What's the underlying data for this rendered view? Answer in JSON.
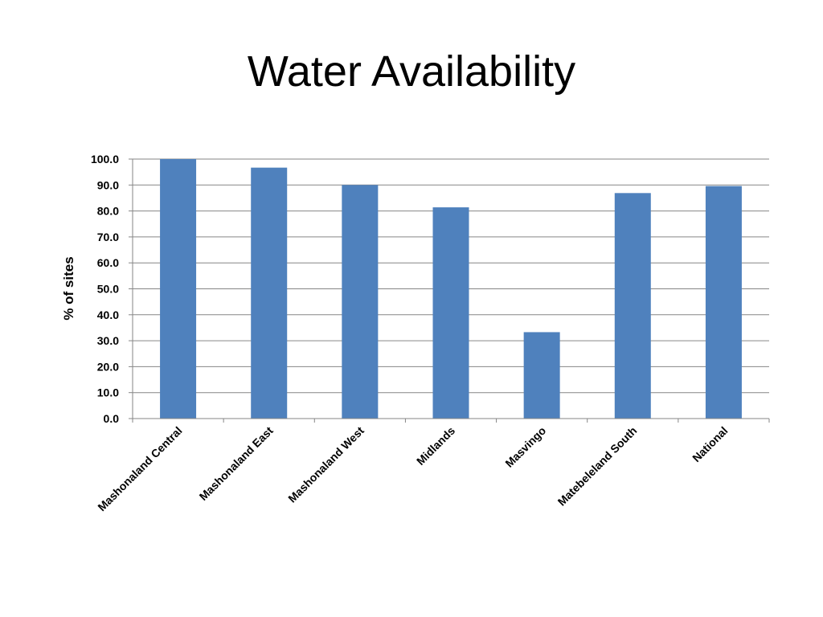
{
  "slide": {
    "title": "Water Availability"
  },
  "chart_data": {
    "type": "bar",
    "title": "",
    "xlabel": "",
    "ylabel": "% of sites",
    "ylim": [
      0,
      100
    ],
    "ytick_step": 10,
    "ytick_labels": [
      "0.0",
      "10.0",
      "20.0",
      "30.0",
      "40.0",
      "50.0",
      "60.0",
      "70.0",
      "80.0",
      "90.0",
      "100.0"
    ],
    "categories": [
      "Mashonaland Central",
      "Mashonaland East",
      "Mashonaland West",
      "Midlands",
      "Masvingo",
      "Matebeleland South",
      "National"
    ],
    "values": [
      100.0,
      96.7,
      90.0,
      81.4,
      33.3,
      86.9,
      89.6
    ],
    "grid": true,
    "legend": "none",
    "bar_color": "#4f81bd",
    "grid_color": "#868686"
  }
}
